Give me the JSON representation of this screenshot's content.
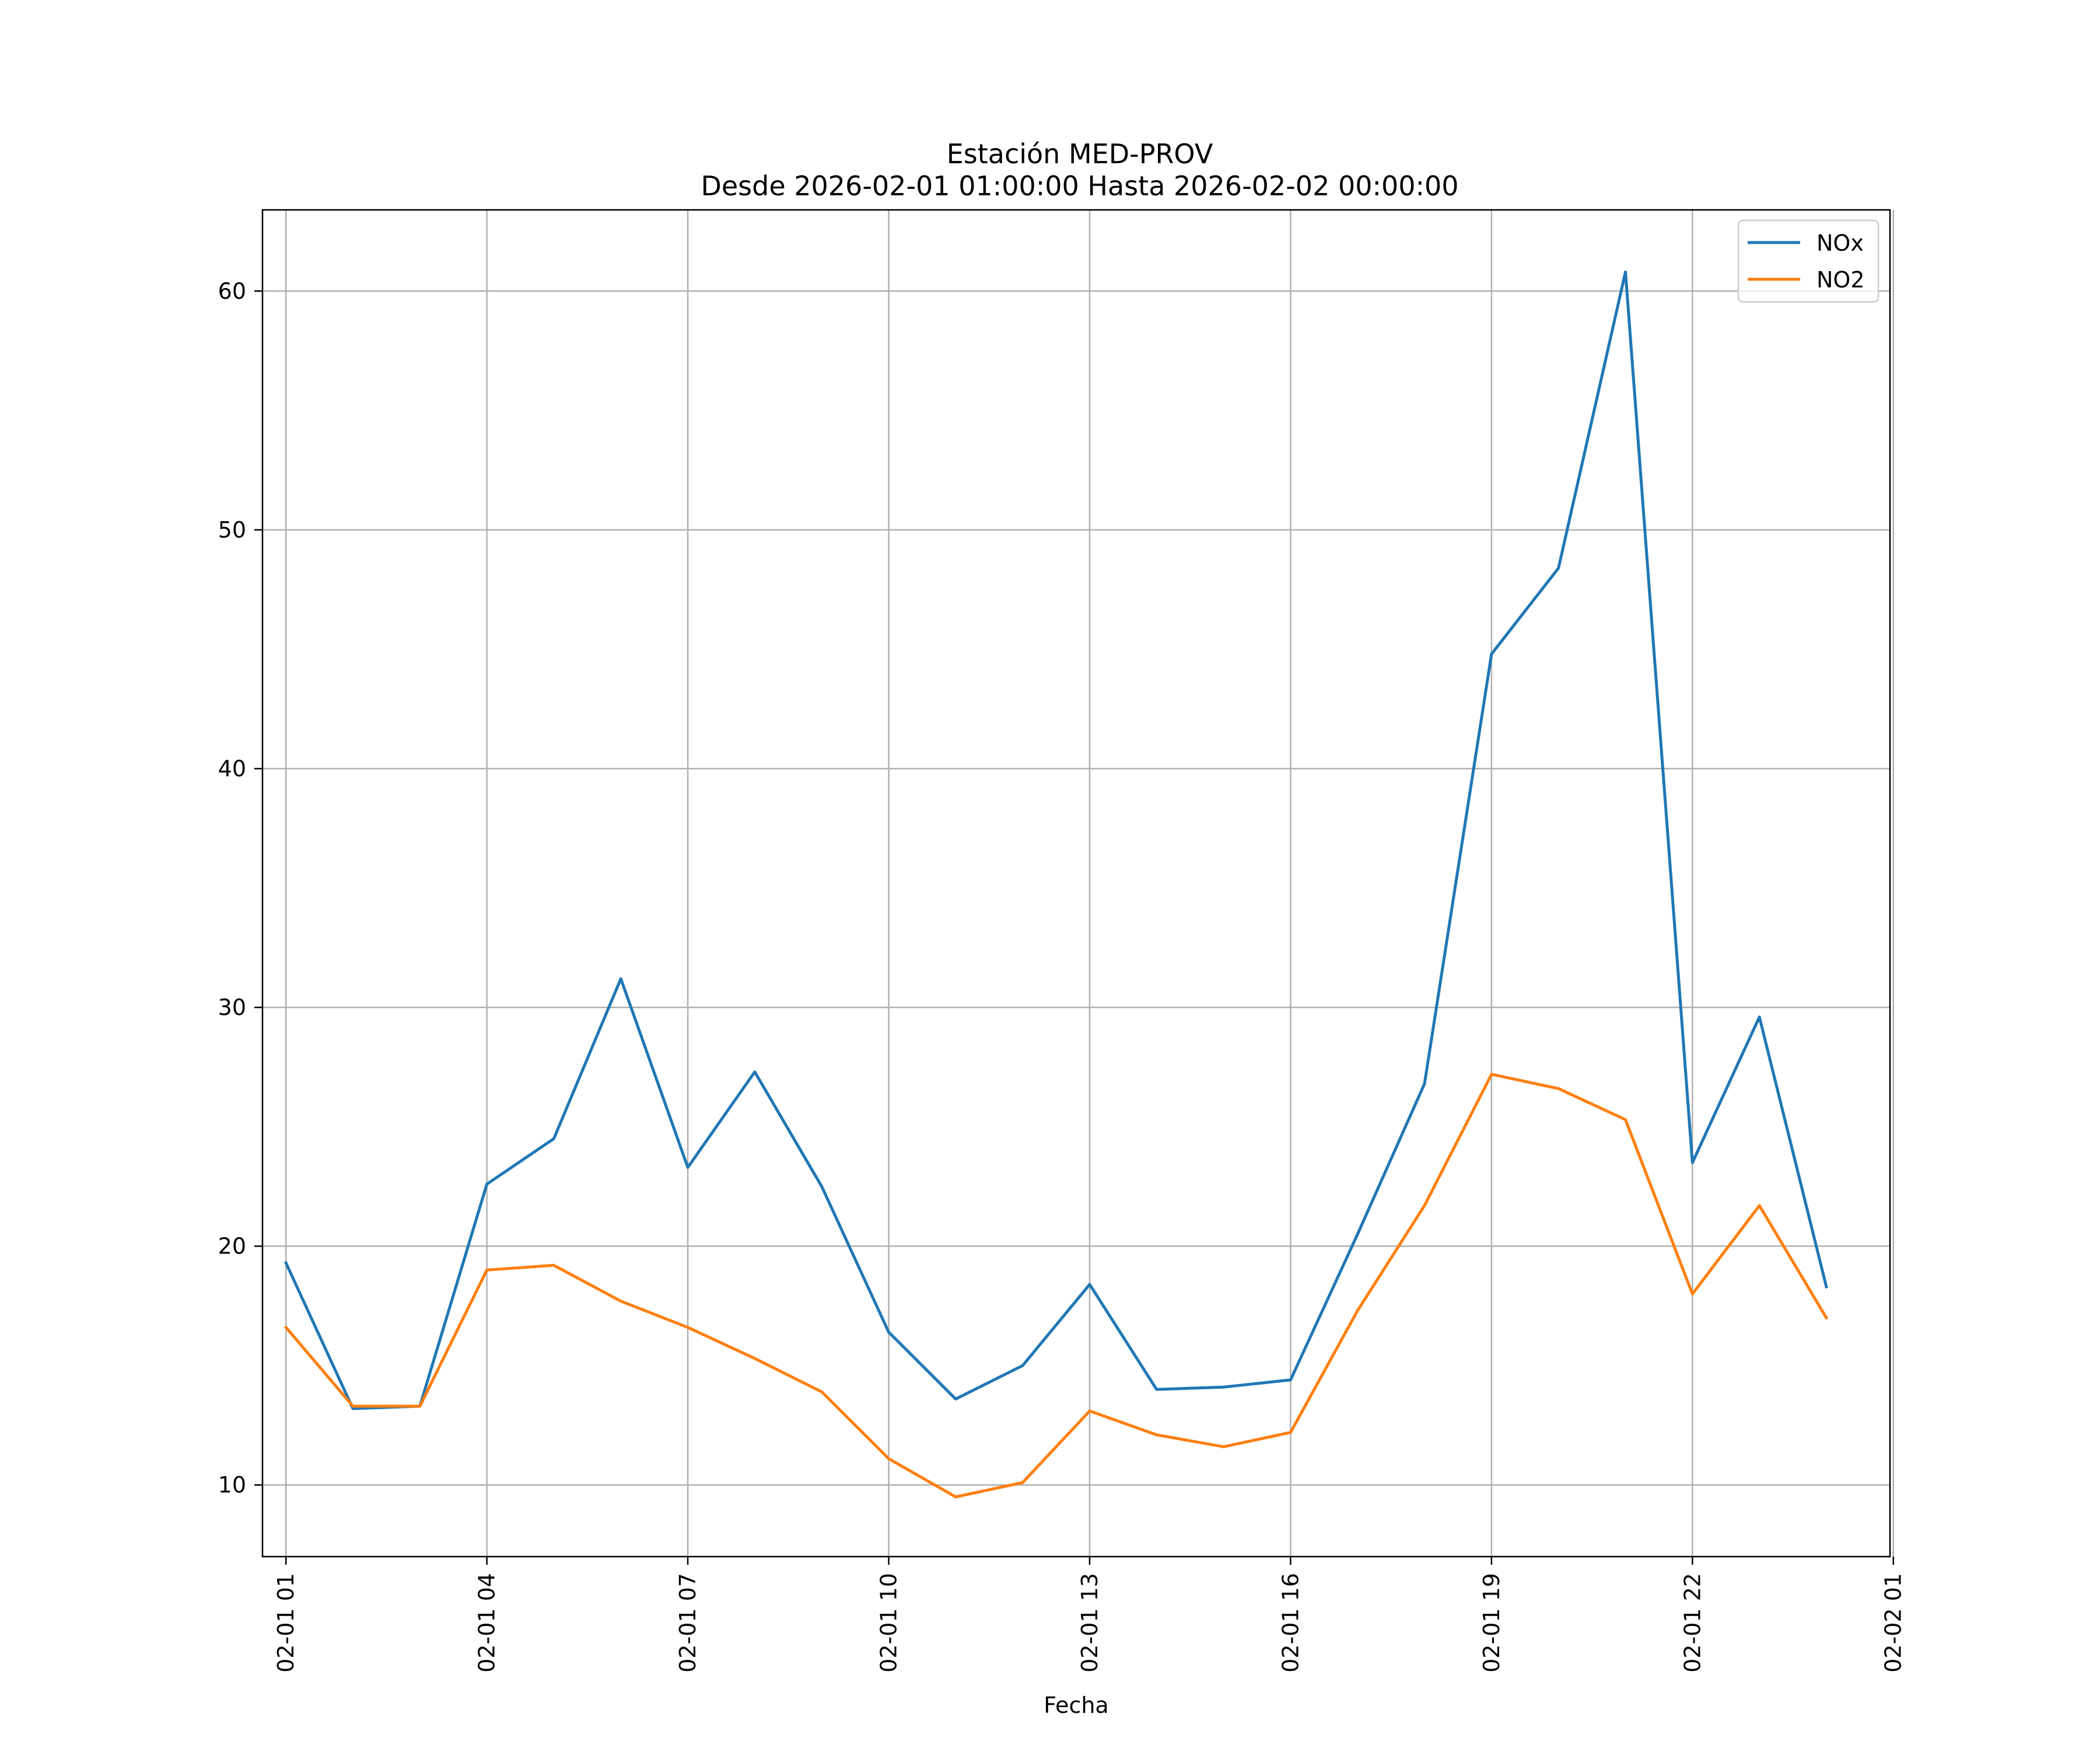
{
  "chart_data": {
    "type": "line",
    "title_line1": "Estación MED-PROV",
    "title_line2": "Desde 2026-02-01 01:00:00 Hasta 2026-02-02 00:00:00",
    "xlabel": "Fecha",
    "ylabel": "",
    "xlim": [
      0.65,
      24.95
    ],
    "ylim": [
      7.0,
      63.4
    ],
    "x_ticks": [
      {
        "value": 1,
        "label": "02-01 01"
      },
      {
        "value": 4,
        "label": "02-01 04"
      },
      {
        "value": 7,
        "label": "02-01 07"
      },
      {
        "value": 10,
        "label": "02-01 10"
      },
      {
        "value": 13,
        "label": "02-01 13"
      },
      {
        "value": 16,
        "label": "02-01 16"
      },
      {
        "value": 19,
        "label": "02-01 19"
      },
      {
        "value": 22,
        "label": "02-01 22"
      },
      {
        "value": 25,
        "label": "02-02 01"
      }
    ],
    "y_ticks": [
      10,
      20,
      30,
      40,
      50,
      60
    ],
    "grid": true,
    "legend_position": "top-right",
    "x": [
      1,
      2,
      3,
      4,
      5,
      6,
      7,
      8,
      9,
      10,
      11,
      12,
      13,
      14,
      15,
      16,
      17,
      18,
      19,
      20,
      21,
      22,
      23,
      24
    ],
    "series": [
      {
        "name": "NOx",
        "color": "#1f77b4",
        "values": [
          19.3,
          13.2,
          13.3,
          22.6,
          24.5,
          31.2,
          23.3,
          27.3,
          22.5,
          16.4,
          13.6,
          15.0,
          18.4,
          14.0,
          14.1,
          14.4,
          20.5,
          26.8,
          44.8,
          48.4,
          60.8,
          23.5,
          29.6,
          18.3
        ]
      },
      {
        "name": "NO2",
        "color": "#ff7f0e",
        "values": [
          16.6,
          13.3,
          13.3,
          19.0,
          19.2,
          17.7,
          16.6,
          15.3,
          13.9,
          11.1,
          9.5,
          10.1,
          13.1,
          12.1,
          11.6,
          12.2,
          17.3,
          21.7,
          27.2,
          26.6,
          25.3,
          18.0,
          21.7,
          17.0
        ]
      }
    ]
  }
}
